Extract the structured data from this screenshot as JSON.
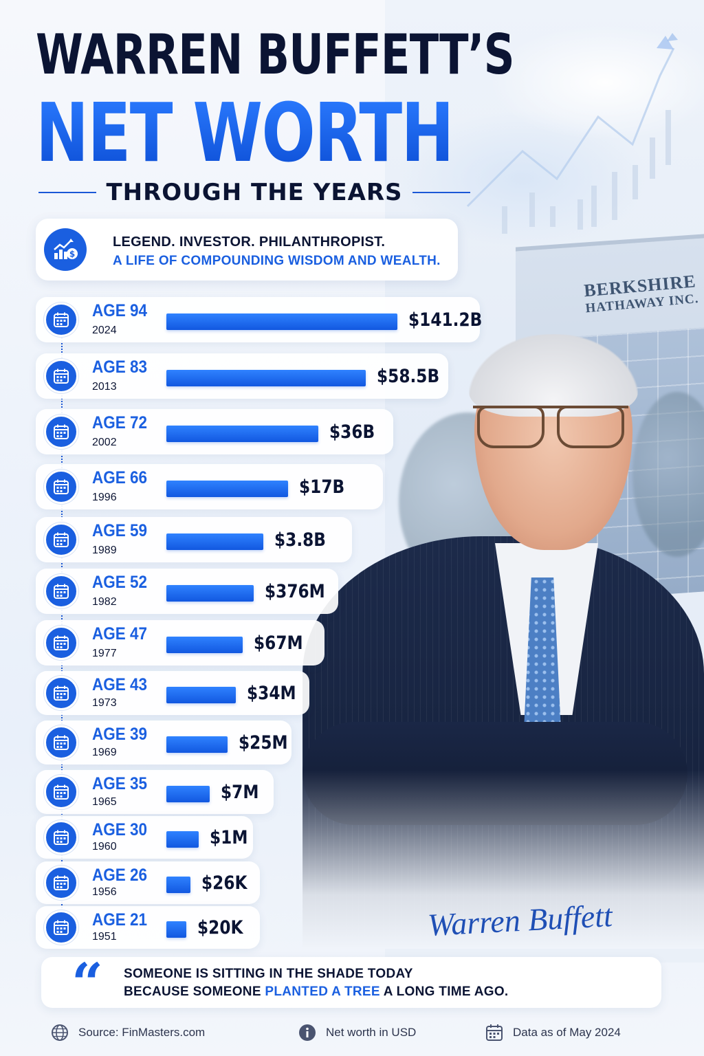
{
  "header": {
    "title_line1": "WARREN BUFFETT’S",
    "title_line2": "NET WORTH",
    "subtitle": "THROUGH THE YEARS"
  },
  "tagline": {
    "line1": "LEGEND. INVESTOR. PHILANTHROPIST.",
    "line2": "A LIFE OF COMPOUNDING WISDOM AND WEALTH.",
    "icon": "growth-chart-dollar-icon"
  },
  "background": {
    "building_sign_line1": "BERKSHIRE",
    "building_sign_line2": "HATHAWAY INC."
  },
  "chart_data": {
    "type": "bar",
    "orientation": "horizontal",
    "unit": "USD",
    "rows": [
      {
        "age_label": "AGE 94",
        "year": "2024",
        "value_label": "$141.2B",
        "value_usd": 141200000000
      },
      {
        "age_label": "AGE 83",
        "year": "2013",
        "value_label": "$58.5B",
        "value_usd": 58500000000
      },
      {
        "age_label": "AGE 72",
        "year": "2002",
        "value_label": "$36B",
        "value_usd": 36000000000
      },
      {
        "age_label": "AGE 66",
        "year": "1996",
        "value_label": "$17B",
        "value_usd": 17000000000
      },
      {
        "age_label": "AGE 59",
        "year": "1989",
        "value_label": "$3.8B",
        "value_usd": 3800000000
      },
      {
        "age_label": "AGE 52",
        "year": "1982",
        "value_label": "$376M",
        "value_usd": 376000000
      },
      {
        "age_label": "AGE 47",
        "year": "1977",
        "value_label": "$67M",
        "value_usd": 67000000
      },
      {
        "age_label": "AGE 43",
        "year": "1973",
        "value_label": "$34M",
        "value_usd": 34000000
      },
      {
        "age_label": "AGE 39",
        "year": "1969",
        "value_label": "$25M",
        "value_usd": 25000000
      },
      {
        "age_label": "AGE 35",
        "year": "1965",
        "value_label": "$7M",
        "value_usd": 7000000
      },
      {
        "age_label": "AGE 30",
        "year": "1960",
        "value_label": "$1M",
        "value_usd": 1000000
      },
      {
        "age_label": "AGE 26",
        "year": "1956",
        "value_label": "$26K",
        "value_usd": 26000
      },
      {
        "age_label": "AGE 21",
        "year": "1951",
        "value_label": "$20K",
        "value_usd": 20000
      }
    ],
    "bar_scale": "non-linear (decorative)",
    "colors": {
      "bar": "#1a5fe0",
      "age_label": "#1a5fe0"
    }
  },
  "signature": "Warren Buffett",
  "quote": {
    "line1": "SOMEONE IS SITTING IN THE SHADE TODAY",
    "line2_prefix": "BECAUSE SOMEONE ",
    "line2_highlight": "PLANTED A TREE",
    "line2_suffix": " A LONG TIME AGO."
  },
  "footer": {
    "source": "Source: FinMasters.com",
    "unit_note": "Net worth in USD",
    "as_of": "Data as of May 2024"
  },
  "colors": {
    "brand_blue": "#1a5fe0",
    "navy": "#0b1433"
  }
}
